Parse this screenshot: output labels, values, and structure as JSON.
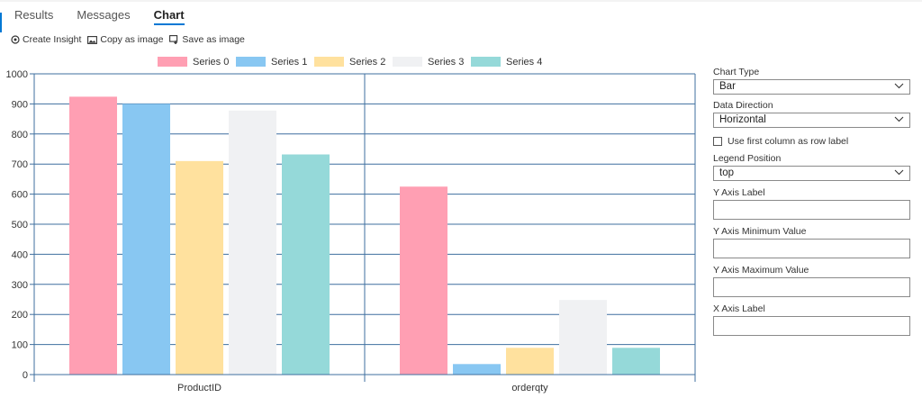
{
  "tabs": [
    {
      "label": "Results",
      "active": false
    },
    {
      "label": "Messages",
      "active": false
    },
    {
      "label": "Chart",
      "active": true
    }
  ],
  "toolbar": {
    "create_insight": "Create Insight",
    "copy_as_image": "Copy as image",
    "save_as_image": "Save as image"
  },
  "chart_data": {
    "type": "bar",
    "categories": [
      "ProductID",
      "orderqty"
    ],
    "series": [
      {
        "name": "Series 0",
        "color": "#ff9fb3",
        "values": [
          924,
          625
        ]
      },
      {
        "name": "Series 1",
        "color": "#88c7f2",
        "values": [
          900,
          35
        ]
      },
      {
        "name": "Series 2",
        "color": "#ffe19e",
        "values": [
          710,
          89
        ]
      },
      {
        "name": "Series 3",
        "color": "#f0f1f3",
        "values": [
          878,
          248
        ]
      },
      {
        "name": "Series 4",
        "color": "#95d9d9",
        "values": [
          732,
          89
        ]
      }
    ],
    "ylim": [
      0,
      1000
    ],
    "yticks": [
      0,
      100,
      200,
      300,
      400,
      500,
      600,
      700,
      800,
      900,
      1000
    ],
    "grid": true,
    "legend": "top"
  },
  "panel": {
    "chart_type_label": "Chart Type",
    "chart_type_value": "Bar",
    "data_direction_label": "Data Direction",
    "data_direction_value": "Horizontal",
    "first_column_label": "Use first column as row label",
    "legend_position_label": "Legend Position",
    "legend_position_value": "top",
    "y_axis_label": "Y Axis Label",
    "y_axis_min_label": "Y Axis Minimum Value",
    "y_axis_max_label": "Y Axis Maximum Value",
    "x_axis_label": "X Axis Label"
  },
  "colors": {
    "accent": "#0078d4",
    "grid_line": "#3f6f9f"
  }
}
